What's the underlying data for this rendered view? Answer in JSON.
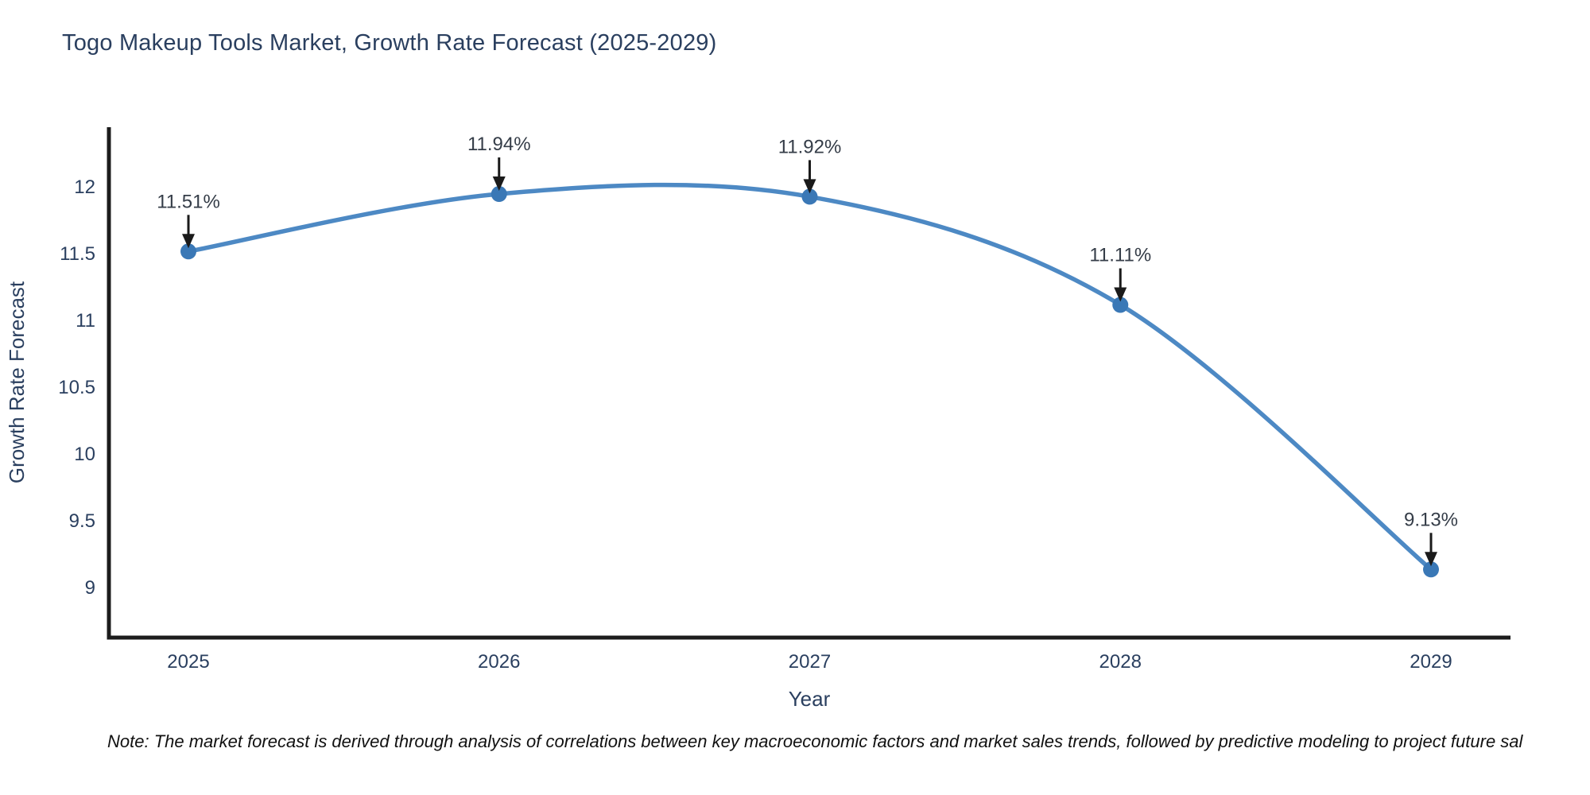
{
  "title": "Togo Makeup Tools Market, Growth Rate Forecast (2025-2029)",
  "note": "Note: The market forecast is derived through analysis of correlations between key macroeconomic factors and market sales trends, followed by predictive modeling to project future sal",
  "chart_data": {
    "type": "line",
    "x": [
      "2025",
      "2026",
      "2027",
      "2028",
      "2029"
    ],
    "series": [
      {
        "name": "Growth Rate Forecast",
        "values": [
          11.51,
          11.94,
          11.92,
          11.11,
          9.13
        ]
      }
    ],
    "point_labels": [
      "11.51%",
      "11.94%",
      "11.92%",
      "11.11%",
      "9.13%"
    ],
    "title": "Togo Makeup Tools Market, Growth Rate Forecast (2025-2029)",
    "xlabel": "Year",
    "ylabel": "Growth Rate Forecast",
    "yticks": [
      9,
      9.5,
      10,
      10.5,
      11,
      11.5,
      12
    ],
    "ylim": [
      8.62,
      12.44
    ],
    "line_shape": "spline",
    "grid": false,
    "legend_position": "none",
    "colors": {
      "line": "#4d89c4",
      "marker": "#3a78b6",
      "axis": "#1c1c1c",
      "arrow": "#1a1a1a",
      "text": "#2a3f5f"
    }
  }
}
